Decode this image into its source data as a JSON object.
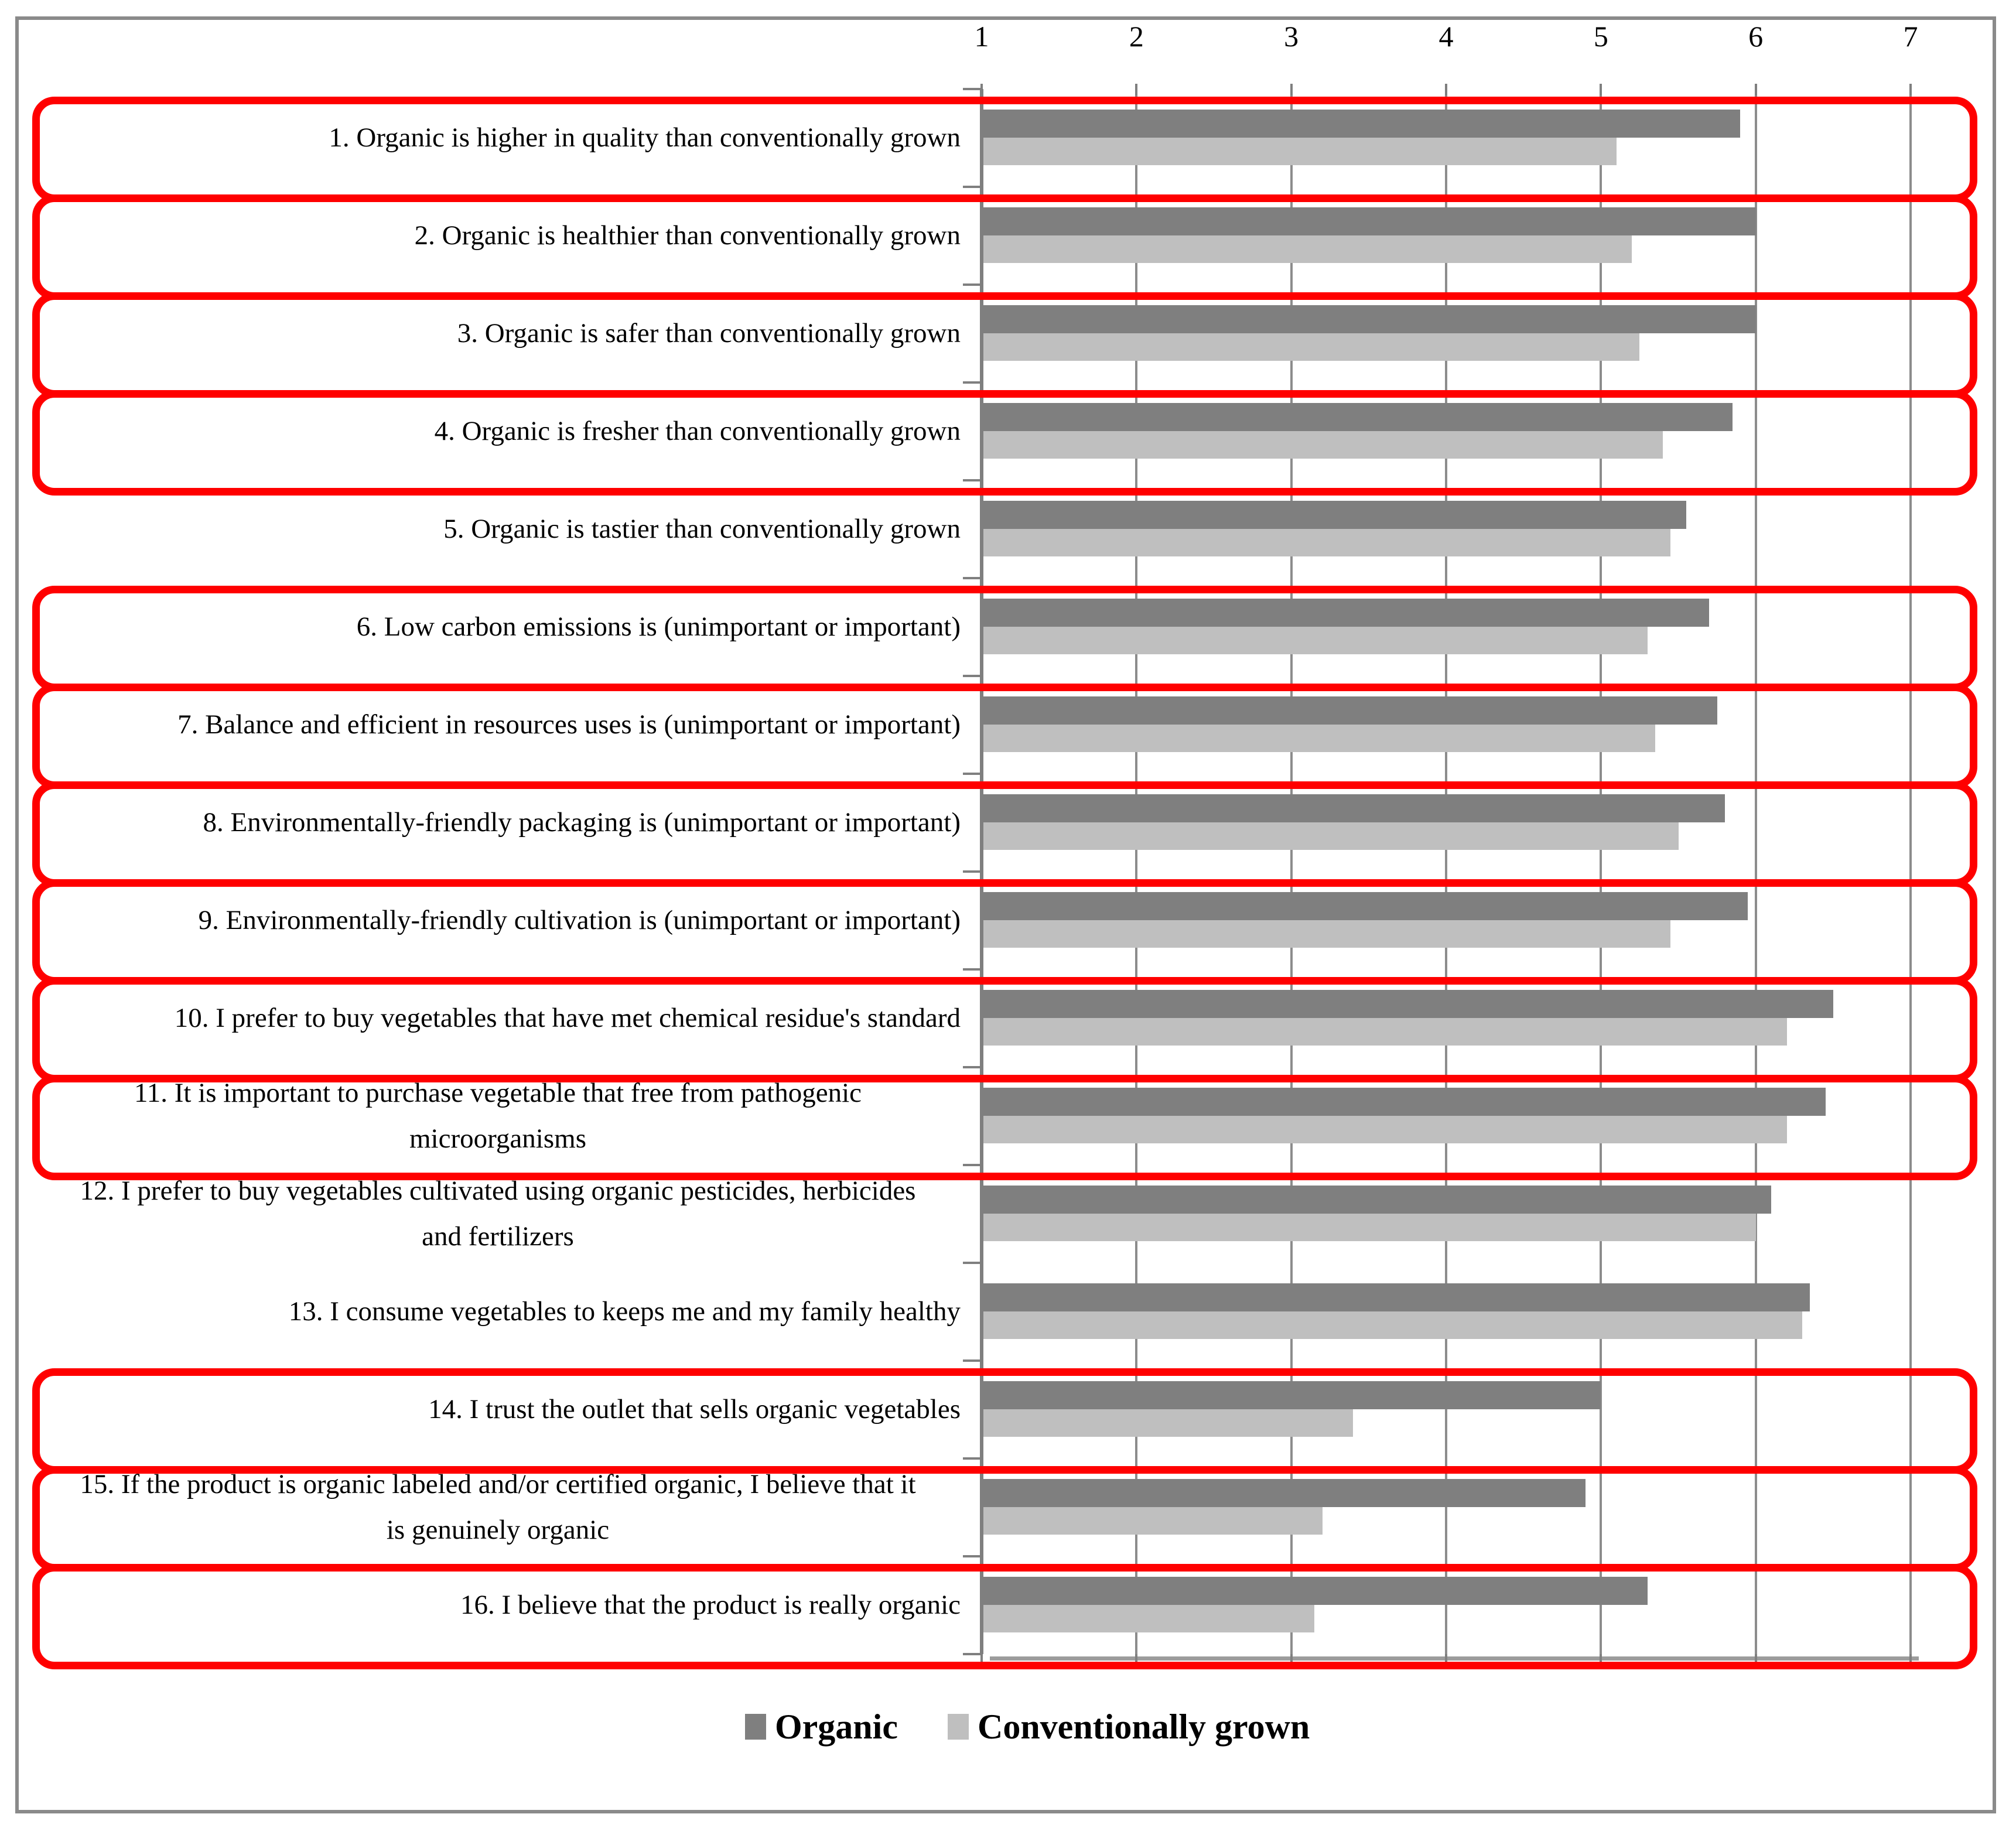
{
  "chart_data": {
    "type": "bar",
    "orientation": "horizontal-bars",
    "title": "",
    "xlabel": "",
    "ylabel": "",
    "xlim": [
      1,
      7
    ],
    "x_ticks": [
      "1",
      "2",
      "3",
      "4",
      "5",
      "6",
      "7"
    ],
    "grid": true,
    "axis_position": "top",
    "legend_position": "bottom",
    "categories": [
      "1. Organic is higher in quality than conventionally grown",
      "2. Organic is healthier than conventionally grown",
      "3. Organic is safer than conventionally grown",
      "4. Organic is fresher than conventionally grown",
      "5. Organic is tastier than conventionally grown",
      "6. Low carbon emissions is (unimportant or important)",
      "7. Balance and efficient in resources uses is (unimportant or important)",
      "8. Environmentally-friendly packaging is (unimportant or important)",
      "9. Environmentally-friendly cultivation is (unimportant or important)",
      "10. I prefer to buy vegetables that have met chemical residue's standard",
      "11. It is important to purchase vegetable that free from pathogenic\nmicroorganisms",
      "12. I prefer to buy vegetables cultivated using organic pesticides, herbicides\nand fertilizers",
      "13. I consume vegetables to keeps me and my family healthy",
      "14. I trust the outlet that sells organic vegetables",
      "15. If the product is organic labeled and/or certified organic, I believe that it\nis genuinely organic",
      "16. I believe that the product is really organic"
    ],
    "series": [
      {
        "name": "Organic",
        "color": "#7f7f7f",
        "values": [
          5.9,
          6.0,
          6.0,
          5.85,
          5.55,
          5.7,
          5.75,
          5.8,
          5.95,
          6.5,
          6.45,
          6.1,
          6.35,
          5.0,
          4.9,
          5.3
        ]
      },
      {
        "name": "Conventionally grown",
        "color": "#bfbfbf",
        "values": [
          5.1,
          5.2,
          5.25,
          5.4,
          5.45,
          5.3,
          5.35,
          5.5,
          5.45,
          6.2,
          6.2,
          6.0,
          6.3,
          3.4,
          3.2,
          3.15
        ]
      }
    ],
    "highlighted_rows": [
      1,
      2,
      3,
      4,
      6,
      7,
      8,
      9,
      10,
      11,
      14,
      15,
      16
    ],
    "highlight_color": "#ff0000"
  }
}
